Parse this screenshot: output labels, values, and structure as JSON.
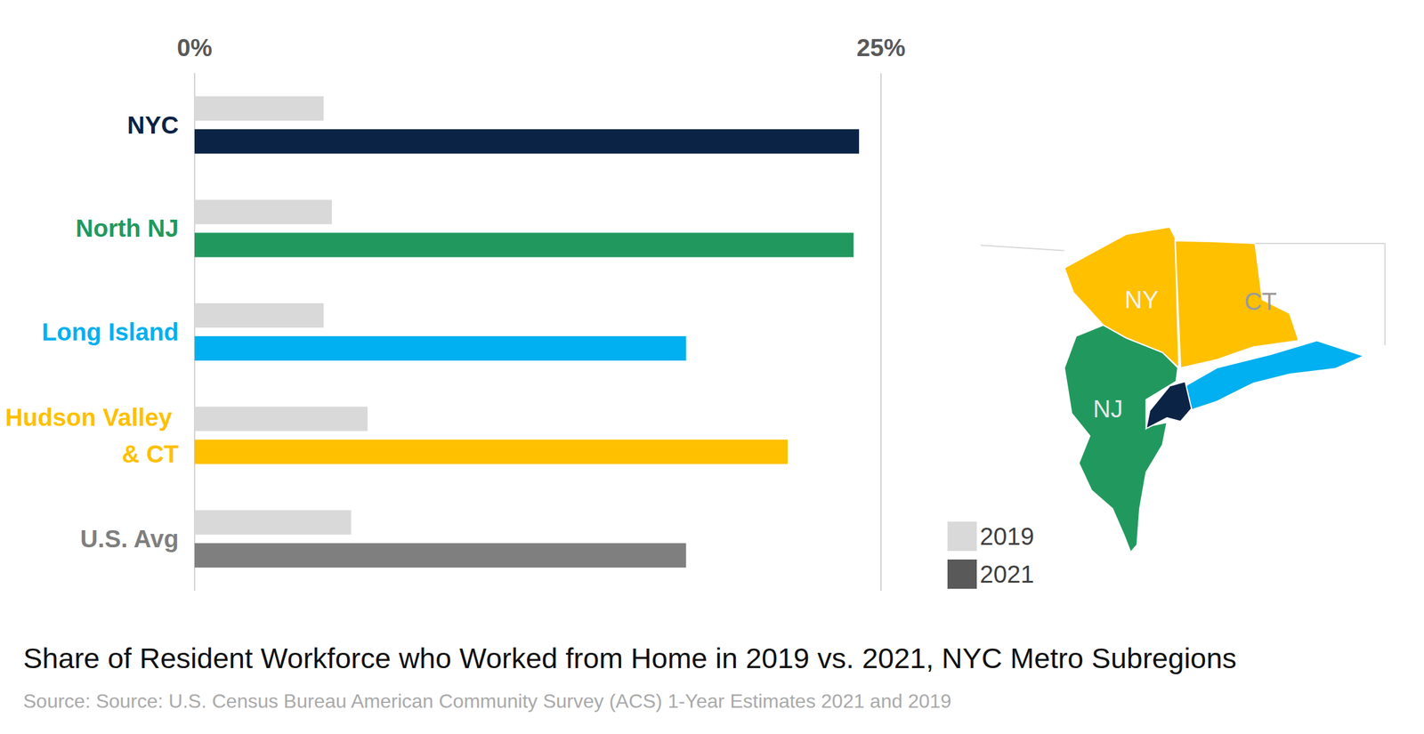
{
  "chart_data": {
    "type": "bar",
    "orientation": "horizontal",
    "title": "Share of Resident Workforce who Worked from Home in 2019 vs. 2021, NYC Metro Subregions",
    "subtitle": "Source: Source: U.S. Census Bureau American Community Survey (ACS) 1-Year Estimates 2021 and 2019",
    "categories": [
      "NYC",
      "North NJ",
      "Long Island",
      "Hudson Valley & CT",
      "U.S. Avg"
    ],
    "series": [
      {
        "name": "2019",
        "color": "#d9d9d9",
        "values": [
          4.7,
          5.0,
          4.7,
          6.3,
          5.7
        ]
      },
      {
        "name": "2021",
        "color": "#595959",
        "colors": [
          "#0b2345",
          "#21995e",
          "#00b0f0",
          "#ffc000",
          "#7f7f7f"
        ],
        "values": [
          24.2,
          24.0,
          17.9,
          21.6,
          17.9
        ]
      }
    ],
    "xlim": [
      0,
      25
    ],
    "xticks": [
      {
        "value": 0,
        "label": "0%"
      },
      {
        "value": 25,
        "label": "25%"
      }
    ],
    "grid": true,
    "legend": "bottom right",
    "annotations": [
      "NY",
      "CT",
      "NJ"
    ]
  }
}
